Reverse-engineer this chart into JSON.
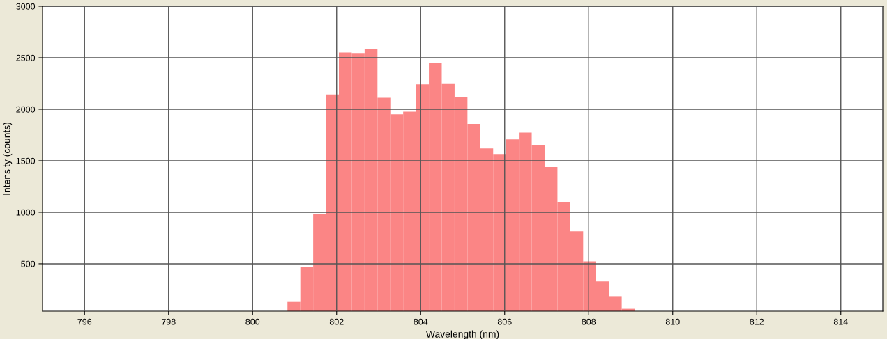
{
  "chart_data": {
    "type": "histogram",
    "xlabel": "Wavelength (nm)",
    "ylabel": "Intensity (counts)",
    "color": "#fb8585",
    "bins": [
      800.83,
      801.136,
      801.442,
      801.748,
      802.054,
      802.36,
      802.666,
      802.972,
      803.278,
      803.584,
      803.89,
      804.196,
      804.502,
      804.808,
      805.114,
      805.42,
      805.726,
      806.032,
      806.338,
      806.644,
      806.95,
      807.256,
      807.562,
      807.868,
      808.174,
      808.48,
      808.786,
      809.092
    ],
    "values": [
      130,
      466,
      984,
      2144,
      2551,
      2545,
      2583,
      2112,
      1950,
      1977,
      2241,
      2448,
      2252,
      2119,
      1858,
      1619,
      1565,
      1707,
      1774,
      1653,
      1439,
      1101,
      815,
      524,
      329,
      186,
      63
    ],
    "xlim": [
      795,
      815
    ],
    "xticks": [
      796,
      798,
      800,
      802,
      804,
      806,
      808,
      810,
      812,
      814
    ],
    "ylim": [
      40,
      3000
    ],
    "yticks": [
      500,
      1000,
      1500,
      2000,
      2500,
      3000
    ],
    "grid": true
  }
}
